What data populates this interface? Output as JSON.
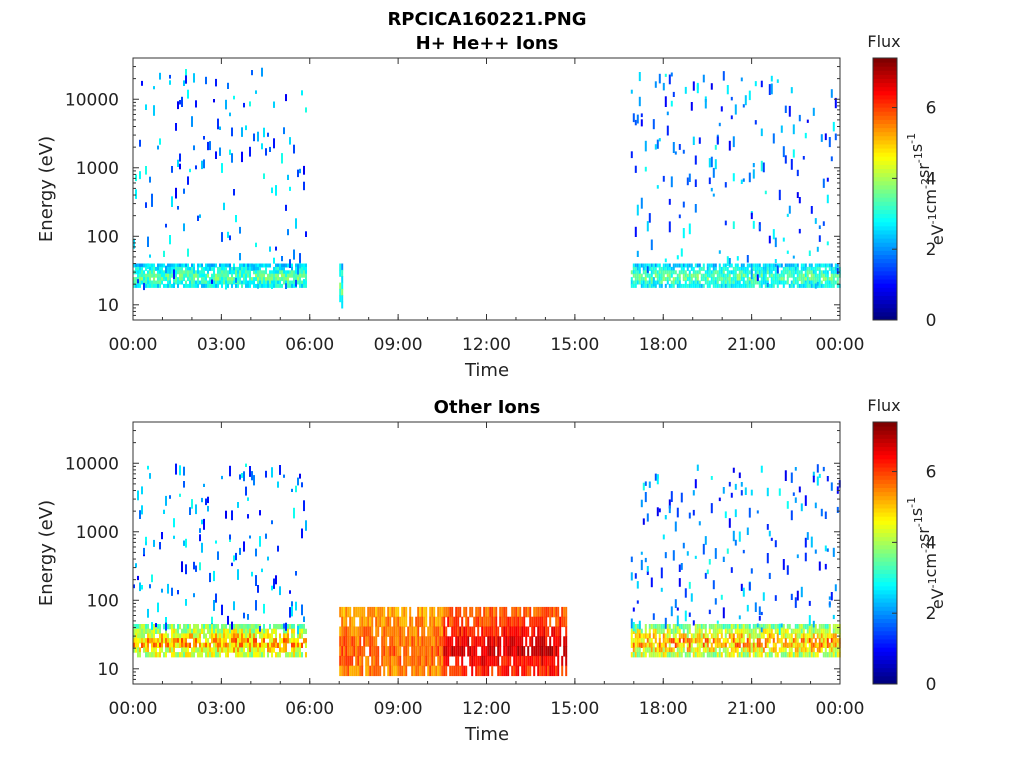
{
  "figure": {
    "title_line1": "RPCICA160221.PNG"
  },
  "chart_data": [
    {
      "type": "heatmap",
      "title": "H+ He++ Ions",
      "xlabel": "Time",
      "ylabel": "Energy (eV)",
      "x_ticks": [
        "00:00",
        "03:00",
        "06:00",
        "09:00",
        "12:00",
        "15:00",
        "18:00",
        "21:00",
        "00:00"
      ],
      "x_range_hours": [
        0,
        24
      ],
      "y_scale": "log",
      "y_ticks": [
        {
          "value": 10,
          "label": "10"
        },
        {
          "value": 100,
          "label": "100"
        },
        {
          "value": 1000,
          "label": "1000"
        },
        {
          "value": 10000,
          "label": "10000"
        }
      ],
      "y_range": [
        6,
        40000
      ],
      "colorbar": {
        "title": "Flux",
        "label": "eV-1cm-2sr-1s-1",
        "range": [
          0,
          7.4
        ],
        "ticks": [
          "0",
          "2",
          "4",
          "6"
        ],
        "colormap": "jet"
      },
      "data_segments": [
        {
          "start_hour": 0.0,
          "end_hour": 5.9,
          "background_band_energy_eV": [
            18,
            40
          ],
          "background_flux": 3.8,
          "sparse_energy_eV": [
            20,
            30000
          ],
          "sparse_flux": [
            0.8,
            3.0
          ]
        },
        {
          "start_hour": 7.0,
          "end_hour": 7.1,
          "background_band_energy_eV": [
            9,
            40
          ],
          "background_flux": 3.8
        },
        {
          "start_hour": 16.9,
          "end_hour": 24.0,
          "background_band_energy_eV": [
            18,
            40
          ],
          "background_flux": 3.8,
          "sparse_energy_eV": [
            20,
            30000
          ],
          "sparse_flux": [
            0.8,
            3.0
          ]
        }
      ]
    },
    {
      "type": "heatmap",
      "title": "Other Ions",
      "xlabel": "Time",
      "ylabel": "Energy (eV)",
      "x_ticks": [
        "00:00",
        "03:00",
        "06:00",
        "09:00",
        "12:00",
        "15:00",
        "18:00",
        "21:00",
        "00:00"
      ],
      "x_range_hours": [
        0,
        24
      ],
      "y_scale": "log",
      "y_ticks": [
        {
          "value": 10,
          "label": "10"
        },
        {
          "value": 100,
          "label": "100"
        },
        {
          "value": 1000,
          "label": "1000"
        },
        {
          "value": 10000,
          "label": "10000"
        }
      ],
      "y_range": [
        6,
        40000
      ],
      "colorbar": {
        "title": "Flux",
        "label": "eV-1cm-2sr-1s-1",
        "range": [
          0,
          7.4
        ],
        "ticks": [
          "0",
          "2",
          "4",
          "6"
        ],
        "colormap": "jet"
      },
      "data_segments": [
        {
          "start_hour": 0.0,
          "end_hour": 5.9,
          "core_band_energy_eV": [
            15,
            45
          ],
          "core_flux": 5.8,
          "sparse_energy_eV": [
            40,
            10000
          ],
          "sparse_flux": [
            0.8,
            3.0
          ]
        },
        {
          "start_hour": 7.0,
          "end_hour": 14.7,
          "core_band_energy_eV": [
            8,
            80
          ],
          "core_flux": [
            4.5,
            7.0
          ],
          "peak_hours": [
            10.5,
            13.0
          ]
        },
        {
          "start_hour": 16.9,
          "end_hour": 24.0,
          "core_band_energy_eV": [
            15,
            45
          ],
          "core_flux": 5.8,
          "sparse_energy_eV": [
            40,
            10000
          ],
          "sparse_flux": [
            0.8,
            3.0
          ]
        }
      ]
    }
  ]
}
